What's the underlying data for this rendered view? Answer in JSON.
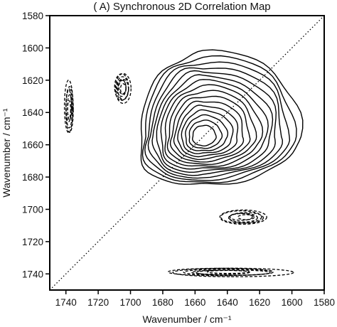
{
  "chart_data": {
    "type": "contour",
    "title": "( A) Synchronous 2D Correlation Map",
    "xlabel": "Wavenumber / cm⁻¹",
    "ylabel": "Wavenumber / cm⁻¹",
    "x_axis": {
      "range": [
        1750,
        1580
      ],
      "reversed": true,
      "ticks": [
        "1740",
        "1720",
        "1700",
        "1680",
        "1660",
        "1640",
        "1620",
        "1600",
        "1580"
      ]
    },
    "y_axis": {
      "range": [
        1580,
        1750
      ],
      "inverted": true,
      "ticks": [
        "1580",
        "1600",
        "1620",
        "1640",
        "1660",
        "1680",
        "1700",
        "1720",
        "1740"
      ]
    },
    "diagonal": {
      "from": [
        1750,
        1750
      ],
      "to": [
        1580,
        1580
      ],
      "style": "dotted"
    },
    "positive_peaks": [
      {
        "center": [
          1655,
          1655
        ],
        "levels": 16,
        "style": "solid"
      }
    ],
    "negative_peaks": [
      {
        "center": [
          1738,
          1637
        ],
        "style": "dashed"
      },
      {
        "center": [
          1705,
          1625
        ],
        "style": "dashed"
      },
      {
        "center": [
          1630,
          1705
        ],
        "style": "dashed"
      },
      {
        "center": [
          1640,
          1739
        ],
        "style": "dashed"
      }
    ],
    "grid": false
  }
}
